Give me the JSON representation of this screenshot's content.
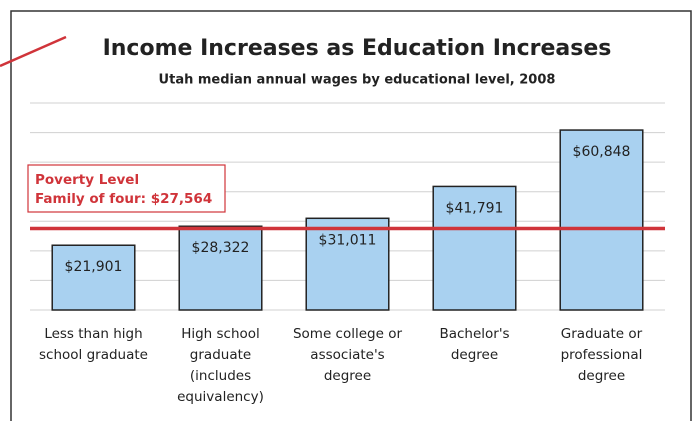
{
  "chart_data": {
    "type": "bar",
    "title": "Income Increases as Education Increases",
    "subtitle": "Utah median annual wages by educational level, 2008",
    "categories": [
      "Less than high\nschool graduate",
      "High school\ngraduate\n(includes\nequivalency)",
      "Some college or\nassociate's\ndegree",
      "Bachelor's\ndegree",
      "Graduate or\nprofessional\ndegree"
    ],
    "values": [
      21901,
      28322,
      31011,
      41791,
      60848
    ],
    "value_labels": [
      "$21,901",
      "$28,322",
      "$31,011",
      "$41,791",
      "$60,848"
    ],
    "color": "#a9d1f0",
    "ylim": [
      0,
      70000
    ],
    "yticks": [
      0,
      10000,
      20000,
      30000,
      40000,
      50000,
      60000,
      70000
    ],
    "grid": true,
    "reference_line": {
      "value": 27564,
      "color": "#d0343a",
      "label": [
        "Poverty Level",
        "Family of four: $27,564"
      ]
    }
  }
}
